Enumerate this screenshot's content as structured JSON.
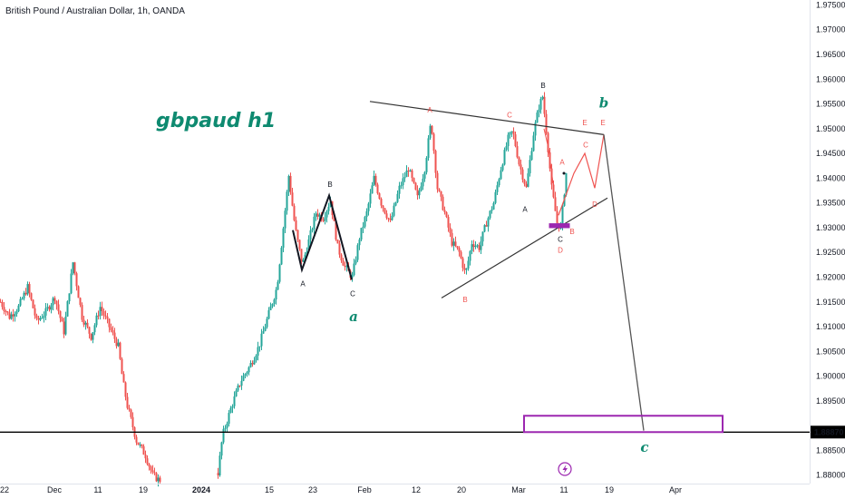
{
  "header": {
    "symbol_title": "British Pound / Australian Dollar, 1h, OANDA"
  },
  "annotation": {
    "title": "gbpaud h1"
  },
  "colors": {
    "up": "#26a69a",
    "down": "#ef5350",
    "wave_dark": "#131722",
    "wave_red": "#ef5350",
    "wave_green": "#0e8a70",
    "target_box": "#9c27b0",
    "level_line": "#000000"
  },
  "chart_data": {
    "type": "candlestick",
    "y_range": [
      1.8783,
      1.976
    ],
    "price_ticks": [
      "1.97500",
      "1.97000",
      "1.96500",
      "1.96000",
      "1.95500",
      "1.95000",
      "1.94500",
      "1.94000",
      "1.93500",
      "1.93000",
      "1.92500",
      "1.92000",
      "1.91500",
      "1.91000",
      "1.90500",
      "1.90000",
      "1.89500",
      "1.88500",
      "1.88000"
    ],
    "current_price_label": "1.88870",
    "current_price": 1.8887,
    "x_ticks": [
      {
        "label": "22",
        "t": 5
      },
      {
        "label": "Dec",
        "t": 60
      },
      {
        "label": "11",
        "t": 108
      },
      {
        "label": "19",
        "t": 158
      },
      {
        "label": "2024",
        "t": 222
      },
      {
        "label": "15",
        "t": 297
      },
      {
        "label": "23",
        "t": 345
      },
      {
        "label": "Feb",
        "t": 402
      },
      {
        "label": "12",
        "t": 459
      },
      {
        "label": "20",
        "t": 509
      },
      {
        "label": "Mar",
        "t": 572
      },
      {
        "label": "11",
        "t": 622
      },
      {
        "label": "19",
        "t": 672
      },
      {
        "label": "Apr",
        "t": 745
      }
    ],
    "price_path": [
      [
        0,
        1.915
      ],
      [
        10,
        1.912
      ],
      [
        20,
        1.914
      ],
      [
        30,
        1.918
      ],
      [
        40,
        1.911
      ],
      [
        50,
        1.913
      ],
      [
        60,
        1.916
      ],
      [
        70,
        1.909
      ],
      [
        80,
        1.923
      ],
      [
        90,
        1.912
      ],
      [
        100,
        1.908
      ],
      [
        110,
        1.914
      ],
      [
        120,
        1.91
      ],
      [
        130,
        1.906
      ],
      [
        135,
        1.899
      ],
      [
        140,
        1.894
      ],
      [
        150,
        1.887
      ],
      [
        160,
        1.884
      ],
      [
        168,
        1.88
      ],
      [
        175,
        1.879
      ],
      [
        240,
        1.8805
      ],
      [
        245,
        1.888
      ],
      [
        255,
        1.894
      ],
      [
        265,
        1.899
      ],
      [
        275,
        1.902
      ],
      [
        285,
        1.906
      ],
      [
        295,
        1.912
      ],
      [
        305,
        1.918
      ],
      [
        312,
        1.93
      ],
      [
        318,
        1.9405
      ],
      [
        325,
        1.93
      ],
      [
        333,
        1.9225
      ],
      [
        341,
        1.928
      ],
      [
        348,
        1.933
      ],
      [
        356,
        1.932
      ],
      [
        364,
        1.9355
      ],
      [
        372,
        1.926
      ],
      [
        380,
        1.922
      ],
      [
        388,
        1.92
      ],
      [
        396,
        1.928
      ],
      [
        404,
        1.933
      ],
      [
        412,
        1.94
      ],
      [
        420,
        1.935
      ],
      [
        430,
        1.931
      ],
      [
        440,
        1.938
      ],
      [
        450,
        1.942
      ],
      [
        460,
        1.936
      ],
      [
        468,
        1.942
      ],
      [
        475,
        1.9515
      ],
      [
        482,
        1.938
      ],
      [
        490,
        1.933
      ],
      [
        498,
        1.927
      ],
      [
        506,
        1.925
      ],
      [
        513,
        1.9205
      ],
      [
        520,
        1.927
      ],
      [
        528,
        1.926
      ],
      [
        536,
        1.931
      ],
      [
        544,
        1.935
      ],
      [
        552,
        1.942
      ],
      [
        560,
        1.948
      ],
      [
        565,
        1.9495
      ],
      [
        572,
        1.943
      ],
      [
        580,
        1.938
      ],
      [
        588,
        1.949
      ],
      [
        594,
        1.9545
      ],
      [
        598,
        1.9565
      ],
      [
        603,
        1.948
      ],
      [
        608,
        1.938
      ],
      [
        614,
        1.931
      ],
      [
        618,
        1.93
      ],
      [
        624,
        1.941
      ]
    ],
    "series": [
      {
        "name": "A",
        "wave": "dark",
        "points": [
          [
            330,
            1.9215
          ],
          [
            363,
            1.9365
          ]
        ]
      },
      {
        "name": "B",
        "wave": "dark",
        "points": [
          [
            363,
            1.9365
          ],
          [
            388,
            1.9195
          ]
        ]
      }
    ],
    "wave_a_path": [
      [
        323,
        1.9295
      ],
      [
        333,
        1.9215
      ],
      [
        363,
        1.9365
      ],
      [
        388,
        1.9195
      ]
    ],
    "triangle_upper": [
      [
        408,
        1.9555
      ],
      [
        666,
        1.9488
      ]
    ],
    "triangle_lower": [
      [
        487,
        1.9158
      ],
      [
        670,
        1.936
      ]
    ],
    "wave_c_path": [
      [
        666,
        1.9488
      ],
      [
        710,
        1.889
      ]
    ],
    "projection_path": [
      [
        616,
        1.9325
      ],
      [
        633,
        1.941
      ],
      [
        645,
        1.945
      ],
      [
        656,
        1.938
      ],
      [
        666,
        1.9488
      ]
    ],
    "red_line_b": [
      [
        600,
        1.95
      ],
      [
        605,
        1.946
      ],
      [
        610,
        1.939
      ]
    ],
    "target_box": {
      "t0": 578,
      "t1": 797,
      "p0": 1.892,
      "p1": 1.8887
    },
    "small_box": {
      "t0": 606,
      "t1": 628,
      "p0": 1.9308,
      "p1": 1.93
    },
    "wave_labels": [
      {
        "text": "A",
        "t": 334,
        "p": 1.92,
        "color": "dark",
        "dy": 10
      },
      {
        "text": "B",
        "t": 364,
        "p": 1.9375,
        "color": "dark",
        "dy": -4
      },
      {
        "text": "C",
        "t": 389,
        "p": 1.918,
        "color": "dark",
        "dy": 10
      },
      {
        "text": "a",
        "t": 390,
        "p": 1.914,
        "color": "green",
        "dy": 16,
        "big": true
      },
      {
        "text": "A",
        "t": 474,
        "p": 1.9525,
        "color": "red",
        "dy": -4
      },
      {
        "text": "B",
        "t": 513,
        "p": 1.9168,
        "color": "red",
        "dy": 10
      },
      {
        "text": "C",
        "t": 562,
        "p": 1.9515,
        "color": "red",
        "dy": -4
      },
      {
        "text": "A",
        "t": 579,
        "p": 1.935,
        "color": "dark",
        "dy": 10
      },
      {
        "text": "B",
        "t": 599,
        "p": 1.9575,
        "color": "dark",
        "dy": -4
      },
      {
        "text": "b",
        "t": 666,
        "p": 1.9535,
        "color": "green",
        "dy": -4,
        "big": true
      },
      {
        "text": "E",
        "t": 645,
        "p": 1.95,
        "color": "red",
        "dy": -4
      },
      {
        "text": "E",
        "t": 665,
        "p": 1.95,
        "color": "red",
        "dy": -4
      },
      {
        "text": "C",
        "t": 646,
        "p": 1.9455,
        "color": "red",
        "dy": -4
      },
      {
        "text": "A",
        "t": 620,
        "p": 1.942,
        "color": "red",
        "dy": -4
      },
      {
        "text": "D",
        "t": 656,
        "p": 1.936,
        "color": "red",
        "dy": 10
      },
      {
        "text": "B",
        "t": 631,
        "p": 1.9305,
        "color": "red",
        "dy": 10
      },
      {
        "text": "C",
        "t": 618,
        "p": 1.929,
        "color": "dark",
        "dy": 10
      },
      {
        "text": "D",
        "t": 618,
        "p": 1.9275,
        "color": "red",
        "dy": 14
      },
      {
        "text": "c",
        "t": 711,
        "p": 1.888,
        "color": "green",
        "dy": 18,
        "big": true
      }
    ]
  }
}
